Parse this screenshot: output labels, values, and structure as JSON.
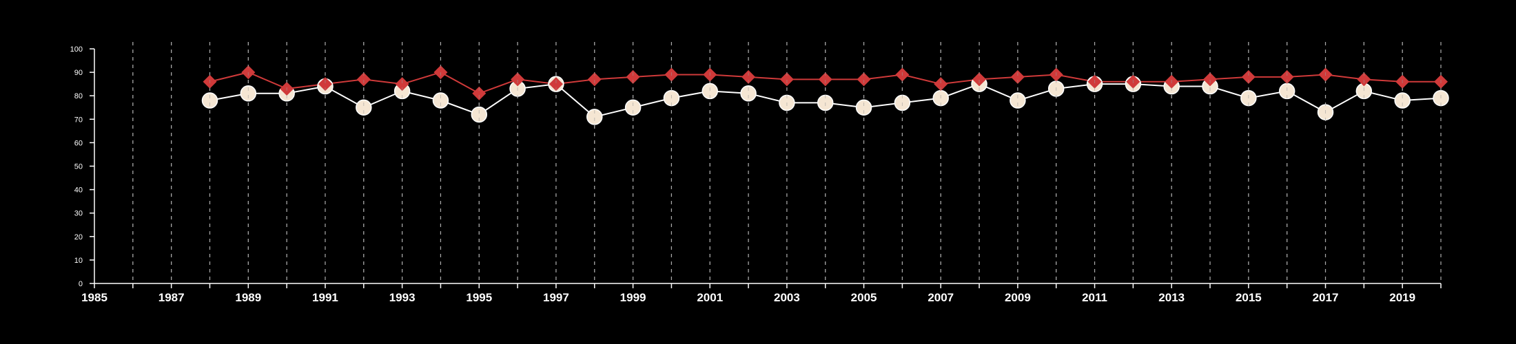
{
  "chart_data": {
    "type": "line",
    "title": "",
    "xlabel": "",
    "ylabel": "",
    "xlim": [
      1985,
      2020
    ],
    "ylim": [
      0,
      100
    ],
    "y_ticks": [
      0,
      10,
      20,
      30,
      40,
      50,
      60,
      70,
      80,
      90,
      100
    ],
    "x_tick_labels": [
      "1985",
      "1987",
      "1989",
      "1991",
      "1993",
      "1995",
      "1997",
      "1999",
      "2001",
      "2003",
      "2005",
      "2007",
      "2009",
      "2011",
      "2013",
      "2015",
      "2017",
      "2019"
    ],
    "grid": "vertical dashed lines at every year",
    "legend": "none",
    "x": [
      1988,
      1989,
      1990,
      1991,
      1992,
      1993,
      1994,
      1995,
      1996,
      1997,
      1998,
      1999,
      2000,
      2001,
      2002,
      2003,
      2004,
      2005,
      2006,
      2007,
      2008,
      2009,
      2010,
      2011,
      2012,
      2013,
      2014,
      2015,
      2016,
      2017,
      2018,
      2019,
      2020
    ],
    "series": [
      {
        "marker": "diamond",
        "color": "#d03a3a",
        "values": [
          86,
          90,
          83,
          85,
          87,
          85,
          90,
          81,
          87,
          85,
          87,
          88,
          89,
          89,
          88,
          87,
          87,
          87,
          89,
          85,
          87,
          88,
          89,
          86,
          86,
          86,
          87,
          88,
          88,
          89,
          87,
          86,
          86
        ]
      },
      {
        "marker": "circle",
        "color": "#ffffff",
        "fill": "#f5e6d3",
        "values": [
          78,
          81,
          81,
          84,
          75,
          82,
          78,
          72,
          83,
          85,
          71,
          75,
          79,
          82,
          81,
          77,
          77,
          75,
          77,
          79,
          85,
          78,
          83,
          85,
          85,
          84,
          84,
          79,
          82,
          73,
          82,
          78,
          79
        ]
      }
    ]
  }
}
